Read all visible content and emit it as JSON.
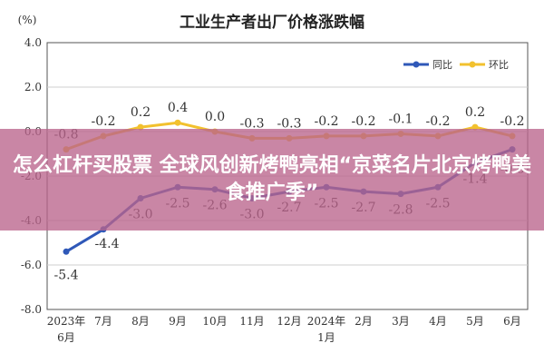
{
  "chart_data": {
    "type": "line",
    "title": "工业生产者出厂价格涨跌幅",
    "ylabel": "(%)",
    "ylim": [
      -8.0,
      4.0
    ],
    "yticks": [
      "4.0",
      "2.0",
      "0.0",
      "-2.0",
      "-4.0",
      "-6.0",
      "-8.0"
    ],
    "categories": [
      [
        "2023年",
        "6月"
      ],
      [
        "7月"
      ],
      [
        "8月"
      ],
      [
        "9月"
      ],
      [
        "10月"
      ],
      [
        "11月"
      ],
      [
        "12月"
      ],
      [
        "2024年",
        "1月"
      ],
      [
        "2月"
      ],
      [
        "3月"
      ],
      [
        "4月"
      ],
      [
        "5月"
      ],
      [
        "6月"
      ]
    ],
    "legend_position": "top-right",
    "grid": true,
    "series": [
      {
        "name": "同比",
        "color": "#2f58b8",
        "values": [
          -5.4,
          -4.4,
          -3.0,
          -2.5,
          -2.6,
          -3.0,
          -2.7,
          -2.5,
          -2.7,
          -2.8,
          -2.5,
          -1.4,
          -0.8
        ],
        "labels": [
          "-5.4",
          "-4.4",
          "-3.0",
          "-2.5",
          "-2.6",
          "-3.0",
          "-2.7",
          "-2.5",
          "-2.7",
          "-2.8",
          "-2.5",
          "-1.4",
          "-0.8"
        ]
      },
      {
        "name": "环比",
        "color": "#f2c12e",
        "values": [
          -0.8,
          -0.2,
          0.2,
          0.4,
          0.0,
          -0.3,
          -0.3,
          -0.2,
          -0.2,
          -0.1,
          -0.2,
          0.2,
          -0.2
        ],
        "labels": [
          "-0.8",
          "-0.2",
          "0.2",
          "0.4",
          "0.0",
          "-0.3",
          "-0.3",
          "-0.2",
          "-0.2",
          "-0.1",
          "-0.2",
          "0.2",
          "-0.2"
        ]
      }
    ]
  },
  "overlay": {
    "headline": "怎么杠杆买股票 全球风创新烤鸭亮相“京菜名片北京烤鸭美食推广季”",
    "color": "#ba648c"
  }
}
